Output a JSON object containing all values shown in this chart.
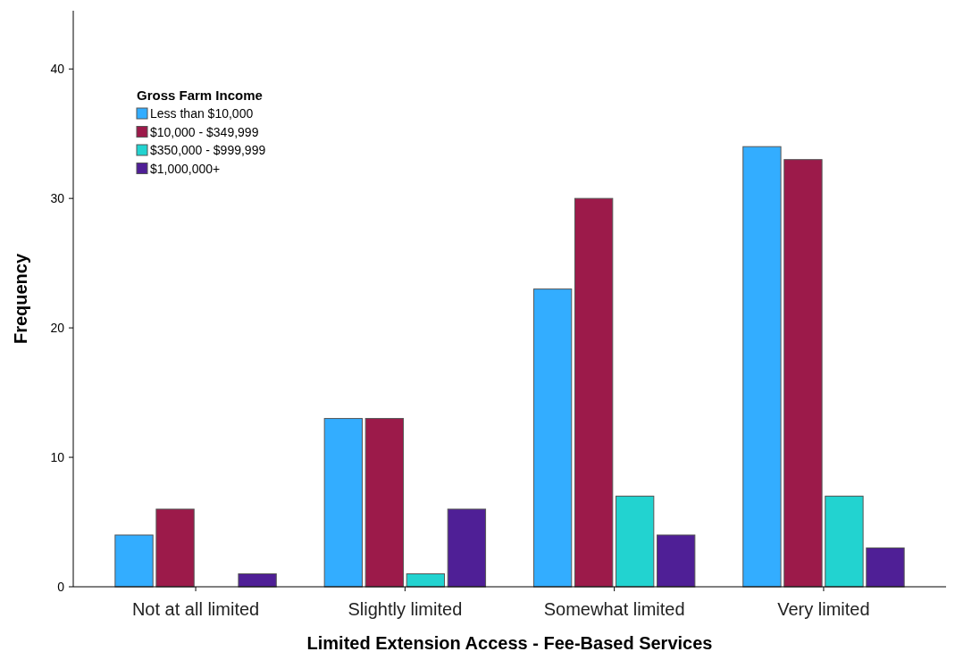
{
  "chart_data": {
    "type": "bar",
    "xlabel": "Limited Extension Access - Fee-Based Services",
    "ylabel": "Frequency",
    "legend_title": "Gross Farm Income",
    "legend": "top left",
    "grid": false,
    "categories": [
      "Not at all limited",
      "Slightly limited",
      "Somewhat limited",
      "Very limited"
    ],
    "ylim": [
      0,
      44.5
    ],
    "yticks": [
      0,
      10,
      20,
      30,
      40
    ],
    "series": [
      {
        "name": "Less than $10,000",
        "color": "#33adff",
        "values": [
          4,
          13,
          23,
          34
        ]
      },
      {
        "name": "$10,000 - $349,999",
        "color": "#9c1a4a",
        "values": [
          6,
          13,
          30,
          33
        ]
      },
      {
        "name": "$350,000 - $999,999",
        "color": "#22d3d0",
        "values": [
          null,
          1,
          7,
          7
        ]
      },
      {
        "name": "$1,000,000+",
        "color": "#4f1f96",
        "values": [
          1,
          6,
          4,
          3
        ]
      }
    ]
  }
}
